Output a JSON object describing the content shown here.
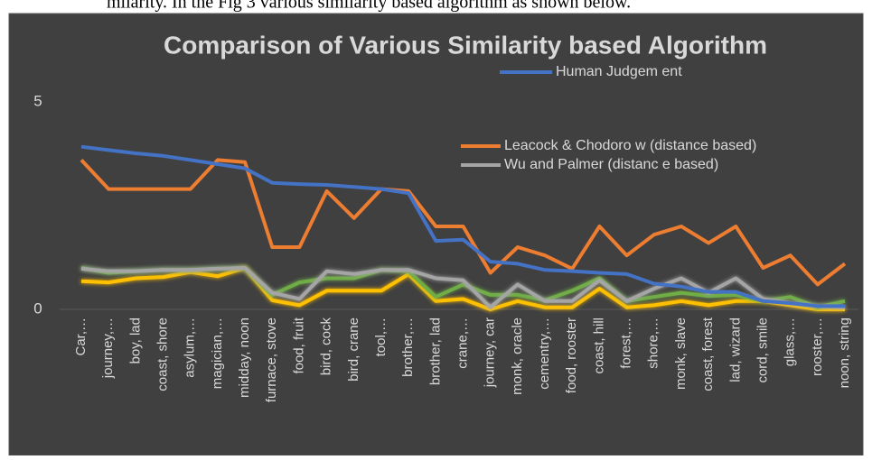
{
  "caption": "milarity. In the Fig 3 various similarity based algorithm as shown below.",
  "chart_data": {
    "type": "line",
    "title": "Comparison of Various Similarity based Algorithm",
    "categories": [
      "Car,…",
      "journey,…",
      "boy, lad",
      "coast, shore",
      "asylum,…",
      "magician,…",
      "midday, noon",
      "furnace, stove",
      "food, fruit",
      "bird, cock",
      "bird, crane",
      "tool,…",
      "brother,…",
      "brother, lad",
      "crane,…",
      "journey, car",
      "monk, oracle",
      "cementry,…",
      "food, rooster",
      "coast, hill",
      "forest,…",
      "shore,…",
      "monk, slave",
      "coast, forest",
      "lad, wizard",
      "cord, smile",
      "glass,…",
      "rooster,…",
      "noon, string"
    ],
    "series": [
      {
        "name": "Human Judgem ent",
        "color": "#4472c4",
        "values": [
          3.92,
          3.84,
          3.76,
          3.7,
          3.6,
          3.5,
          3.4,
          3.05,
          3.02,
          3.0,
          2.95,
          2.9,
          2.8,
          1.65,
          1.68,
          1.15,
          1.1,
          0.95,
          0.92,
          0.88,
          0.85,
          0.62,
          0.55,
          0.42,
          0.42,
          0.2,
          0.15,
          0.08,
          0.08
        ]
      },
      {
        "name": "Leacock & Chodoro w (distance based)",
        "color": "#ed7d31",
        "values": [
          3.6,
          2.9,
          2.9,
          2.9,
          2.9,
          3.6,
          3.55,
          1.5,
          1.5,
          2.85,
          2.2,
          2.9,
          2.85,
          2.0,
          2.0,
          0.88,
          1.5,
          1.3,
          0.98,
          2.0,
          1.3,
          1.8,
          2.0,
          1.6,
          2.0,
          1.0,
          1.3,
          0.6,
          1.1
        ]
      },
      {
        "name": "Wu and Palmer (distanc e based)",
        "color": "#a5a5a5",
        "values": [
          0.98,
          0.92,
          0.92,
          0.95,
          0.95,
          0.98,
          1.0,
          0.4,
          0.25,
          0.92,
          0.85,
          0.95,
          0.95,
          0.75,
          0.7,
          0.05,
          0.6,
          0.2,
          0.2,
          0.7,
          0.2,
          0.5,
          0.75,
          0.4,
          0.75,
          0.25,
          0.15,
          0.08,
          0.05
        ]
      },
      {
        "color": "#70ad47",
        "values": [
          1.0,
          0.88,
          0.92,
          0.95,
          0.95,
          0.98,
          1.0,
          0.35,
          0.65,
          0.75,
          0.75,
          0.95,
          0.92,
          0.3,
          0.6,
          0.35,
          0.35,
          0.22,
          0.45,
          0.75,
          0.2,
          0.3,
          0.4,
          0.32,
          0.35,
          0.2,
          0.3,
          0.05,
          0.2
        ]
      },
      {
        "color": "#ffc000",
        "values": [
          0.68,
          0.65,
          0.75,
          0.78,
          0.9,
          0.8,
          1.0,
          0.22,
          0.1,
          0.45,
          0.45,
          0.45,
          0.85,
          0.2,
          0.25,
          0.0,
          0.2,
          0.05,
          0.05,
          0.5,
          0.05,
          0.1,
          0.2,
          0.1,
          0.2,
          0.2,
          0.1,
          0.0,
          0.0
        ]
      }
    ],
    "ylim": [
      0,
      5
    ],
    "yticks": [
      0,
      5
    ]
  }
}
